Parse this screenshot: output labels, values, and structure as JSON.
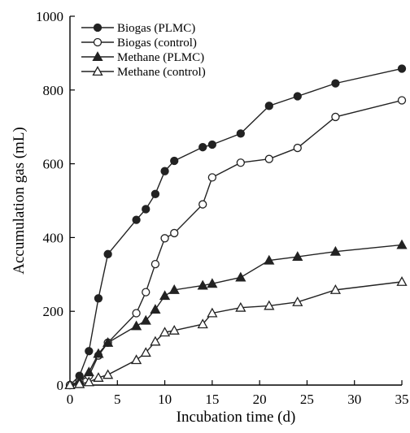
{
  "chart_data": {
    "type": "line",
    "xlabel": "Incubation time (d)",
    "ylabel": "Accumulation gas (mL)",
    "xlim": [
      0,
      35
    ],
    "ylim": [
      0,
      1000
    ],
    "xticks": [
      0,
      5,
      10,
      15,
      20,
      25,
      30,
      35
    ],
    "yticks": [
      0,
      200,
      400,
      600,
      800,
      1000
    ],
    "grid": false,
    "legend_position": "top-left",
    "series": [
      {
        "name": "Biogas (PLMC)",
        "marker": "filled-circle",
        "color": "#222222",
        "x": [
          0,
          1,
          2,
          3,
          4,
          7,
          8,
          9,
          10,
          11,
          14,
          15,
          18,
          21,
          24,
          28,
          35
        ],
        "y": [
          0,
          25,
          92,
          235,
          355,
          448,
          477,
          518,
          580,
          608,
          645,
          652,
          682,
          757,
          783,
          818,
          858
        ]
      },
      {
        "name": "Biogas (control)",
        "marker": "open-circle",
        "color": "#222222",
        "x": [
          0,
          1,
          2,
          3,
          4,
          7,
          8,
          9,
          10,
          11,
          14,
          15,
          18,
          21,
          24,
          28,
          35
        ],
        "y": [
          0,
          10,
          25,
          80,
          115,
          195,
          252,
          328,
          398,
          412,
          490,
          563,
          603,
          613,
          643,
          727,
          772
        ]
      },
      {
        "name": "Methane (PLMC)",
        "marker": "filled-triangle",
        "color": "#222222",
        "x": [
          0,
          1,
          2,
          3,
          4,
          7,
          8,
          9,
          10,
          11,
          14,
          15,
          18,
          21,
          24,
          28,
          35
        ],
        "y": [
          0,
          10,
          35,
          85,
          115,
          160,
          175,
          205,
          242,
          258,
          270,
          275,
          292,
          338,
          348,
          362,
          380
        ]
      },
      {
        "name": "Methane (control)",
        "marker": "open-triangle",
        "color": "#222222",
        "x": [
          0,
          1,
          2,
          3,
          4,
          7,
          8,
          9,
          10,
          11,
          14,
          15,
          18,
          21,
          24,
          28,
          35
        ],
        "y": [
          0,
          3,
          8,
          20,
          28,
          68,
          88,
          118,
          143,
          148,
          165,
          195,
          210,
          215,
          225,
          258,
          280
        ]
      }
    ]
  }
}
